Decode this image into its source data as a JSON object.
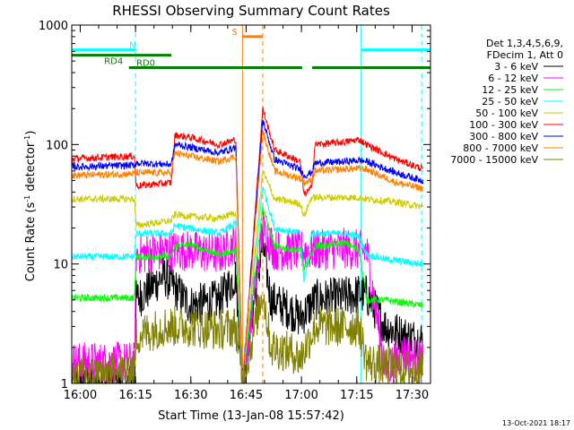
{
  "chart_data": {
    "type": "line",
    "title": "RHESSI Observing Summary Count Rates",
    "xlabel": "Start Time (13-Jan-08 15:57:42)",
    "ylabel_main": "Count Rate (s",
    "ylabel_sup1": "-1",
    "ylabel_mid": " detector",
    "ylabel_sup2": "-1",
    "ylabel_end": ")",
    "yscale": "log",
    "ylim": [
      1,
      1000
    ],
    "xlim_minutes": [
      0,
      97.3
    ],
    "x_ticks": [
      {
        "label": "16:00",
        "t": 2.3
      },
      {
        "label": "16:15",
        "t": 17.3
      },
      {
        "label": "16:30",
        "t": 32.3
      },
      {
        "label": "16:45",
        "t": 47.3
      },
      {
        "label": "17:00",
        "t": 62.3
      },
      {
        "label": "17:15",
        "t": 77.3
      },
      {
        "label": "17:30",
        "t": 92.3
      }
    ],
    "y_ticks": [
      {
        "label": "1",
        "v": 1
      },
      {
        "label": "10",
        "v": 10
      },
      {
        "label": "100",
        "v": 100
      },
      {
        "label": "1000",
        "v": 1000
      }
    ],
    "legend_header": [
      "Det 1,3,4,5,6,9,",
      "FDecim 1, Att 0"
    ],
    "legend_placement": "right-outside",
    "timestamp": "13-Oct-2021 18:17",
    "flags": [
      {
        "label": "N",
        "color": "#00ffff",
        "y": 620,
        "segments": [
          [
            0,
            17.3
          ],
          [
            78.5,
            97.3
          ]
        ]
      },
      {
        "label": "RD0",
        "color": "#008000",
        "y": 440,
        "segments": [
          [
            15.5,
            27.0
          ],
          [
            27.0,
            62.5
          ],
          [
            65.2,
            97.3
          ]
        ]
      },
      {
        "label": "RD4",
        "color": "#008000",
        "y": 560,
        "segments": [
          [
            0,
            27.0
          ]
        ]
      },
      {
        "label": "S",
        "color": "#ff8000",
        "y": 800,
        "segments": [
          [
            46.3,
            51.8
          ]
        ]
      }
    ],
    "vertical_lines": [
      {
        "t": 17.3,
        "color": "#00ffff",
        "style": "dashed"
      },
      {
        "t": 78.5,
        "color": "#00ffff",
        "style": "solid"
      },
      {
        "t": 94.9,
        "color": "#00ffff",
        "style": "dashed"
      },
      {
        "t": 46.3,
        "color": "#ff8000",
        "style": "solid"
      },
      {
        "t": 51.8,
        "color": "#ff8000",
        "style": "dashed"
      }
    ],
    "series": [
      {
        "name": "3 - 6 keV",
        "color": "#000000",
        "pts": [
          [
            0,
            1
          ],
          [
            17,
            1
          ],
          [
            17.5,
            5
          ],
          [
            25,
            8
          ],
          [
            32,
            4.5
          ],
          [
            40,
            5
          ],
          [
            44.5,
            8
          ],
          [
            46.3,
            1
          ],
          [
            51.8,
            15
          ],
          [
            54,
            5
          ],
          [
            60,
            4
          ],
          [
            62,
            3.5
          ],
          [
            66,
            5
          ],
          [
            74,
            5.3
          ],
          [
            78,
            5.6
          ],
          [
            80,
            5.5
          ],
          [
            85,
            3
          ],
          [
            90,
            2.5
          ],
          [
            95,
            2.3
          ]
        ]
      },
      {
        "name": "6 - 12 keV",
        "color": "#ff00ff",
        "pts": [
          [
            0,
            1.5
          ],
          [
            17,
            1.5
          ],
          [
            17.5,
            12
          ],
          [
            27,
            13
          ],
          [
            32,
            13
          ],
          [
            40,
            12
          ],
          [
            44.5,
            15
          ],
          [
            46.3,
            1
          ],
          [
            51.8,
            20
          ],
          [
            55,
            13
          ],
          [
            62,
            13
          ],
          [
            66,
            13
          ],
          [
            74,
            13.5
          ],
          [
            78,
            13
          ],
          [
            80,
            13
          ],
          [
            85,
            1.3
          ],
          [
            90,
            1.8
          ],
          [
            95,
            1.5
          ]
        ]
      },
      {
        "name": "12 - 25 keV",
        "color": "#00ff00",
        "pts": [
          [
            0,
            5.2
          ],
          [
            17,
            5.2
          ],
          [
            17.5,
            11.5
          ],
          [
            27,
            11.5
          ],
          [
            28,
            14
          ],
          [
            32,
            14.5
          ],
          [
            40,
            12
          ],
          [
            44.5,
            13
          ],
          [
            46.3,
            1
          ],
          [
            51.8,
            30
          ],
          [
            55,
            14
          ],
          [
            62,
            13
          ],
          [
            63,
            9
          ],
          [
            66,
            14
          ],
          [
            74,
            15
          ],
          [
            78,
            13
          ],
          [
            80,
            5
          ],
          [
            85,
            5
          ],
          [
            95,
            4.5
          ]
        ]
      },
      {
        "name": "25 - 50 keV",
        "color": "#00ffff",
        "pts": [
          [
            0,
            11.5
          ],
          [
            17,
            11.5
          ],
          [
            17.5,
            18
          ],
          [
            27,
            18
          ],
          [
            28,
            21
          ],
          [
            32,
            20
          ],
          [
            40,
            18
          ],
          [
            44.5,
            22
          ],
          [
            46.3,
            1
          ],
          [
            51.8,
            45
          ],
          [
            55,
            20
          ],
          [
            62,
            18
          ],
          [
            63,
            7
          ],
          [
            65,
            18
          ],
          [
            74,
            18
          ],
          [
            78,
            17
          ],
          [
            80,
            12
          ],
          [
            85,
            11
          ],
          [
            95,
            10
          ]
        ]
      },
      {
        "name": "50 - 100 keV",
        "color": "#cccc00",
        "pts": [
          [
            0,
            35
          ],
          [
            17,
            35
          ],
          [
            17.5,
            21
          ],
          [
            27,
            23
          ],
          [
            28,
            26
          ],
          [
            32,
            25
          ],
          [
            40,
            24
          ],
          [
            44.5,
            27
          ],
          [
            46.3,
            1
          ],
          [
            51.8,
            60
          ],
          [
            55,
            35
          ],
          [
            62,
            32
          ],
          [
            63,
            25
          ],
          [
            65,
            36
          ],
          [
            74,
            36
          ],
          [
            78,
            36
          ],
          [
            80,
            35
          ],
          [
            88,
            33
          ],
          [
            95,
            30
          ]
        ]
      },
      {
        "name": "100 - 300 keV",
        "color": "#ff0000",
        "pts": [
          [
            0,
            76
          ],
          [
            17,
            80
          ],
          [
            17.5,
            45
          ],
          [
            27,
            48
          ],
          [
            28,
            120
          ],
          [
            32,
            115
          ],
          [
            40,
            100
          ],
          [
            44.5,
            110
          ],
          [
            46.3,
            1
          ],
          [
            51.8,
            200
          ],
          [
            55,
            90
          ],
          [
            62,
            72
          ],
          [
            63,
            38
          ],
          [
            65,
            43
          ],
          [
            66,
            100
          ],
          [
            74,
            105
          ],
          [
            78,
            110
          ],
          [
            80,
            100
          ],
          [
            88,
            75
          ],
          [
            95,
            63
          ]
        ]
      },
      {
        "name": "300 - 800 keV",
        "color": "#0000ff",
        "pts": [
          [
            0,
            65
          ],
          [
            17,
            67
          ],
          [
            17.5,
            70
          ],
          [
            27,
            68
          ],
          [
            28,
            100
          ],
          [
            32,
            95
          ],
          [
            40,
            85
          ],
          [
            44.5,
            95
          ],
          [
            46.3,
            1
          ],
          [
            51.8,
            160
          ],
          [
            55,
            75
          ],
          [
            62,
            62
          ],
          [
            63,
            55
          ],
          [
            65,
            58
          ],
          [
            66,
            70
          ],
          [
            74,
            72
          ],
          [
            78,
            74
          ],
          [
            80,
            72
          ],
          [
            88,
            58
          ],
          [
            95,
            50
          ]
        ]
      },
      {
        "name": "800 - 7000 keV",
        "color": "#ff8000",
        "pts": [
          [
            0,
            55
          ],
          [
            17,
            57
          ],
          [
            17.5,
            58
          ],
          [
            27,
            58
          ],
          [
            28,
            85
          ],
          [
            32,
            80
          ],
          [
            40,
            72
          ],
          [
            44.5,
            80
          ],
          [
            46.3,
            1
          ],
          [
            51.8,
            130
          ],
          [
            55,
            60
          ],
          [
            62,
            52
          ],
          [
            63,
            48
          ],
          [
            65,
            50
          ],
          [
            66,
            60
          ],
          [
            74,
            62
          ],
          [
            78,
            63
          ],
          [
            80,
            62
          ],
          [
            88,
            48
          ],
          [
            95,
            43
          ]
        ]
      },
      {
        "name": "7000 - 15000 keV",
        "color": "#808000",
        "pts": [
          [
            0,
            1.1
          ],
          [
            17,
            1.3
          ],
          [
            17.5,
            2.5
          ],
          [
            25,
            3
          ],
          [
            32,
            3
          ],
          [
            40,
            2.8
          ],
          [
            44.5,
            3
          ],
          [
            46.3,
            1
          ],
          [
            51.8,
            6
          ],
          [
            54,
            2
          ],
          [
            60,
            1.8
          ],
          [
            62,
            1.6
          ],
          [
            66,
            3
          ],
          [
            74,
            3
          ],
          [
            78,
            3
          ],
          [
            80,
            1.5
          ],
          [
            90,
            1.3
          ],
          [
            95,
            1.3
          ]
        ]
      }
    ]
  }
}
